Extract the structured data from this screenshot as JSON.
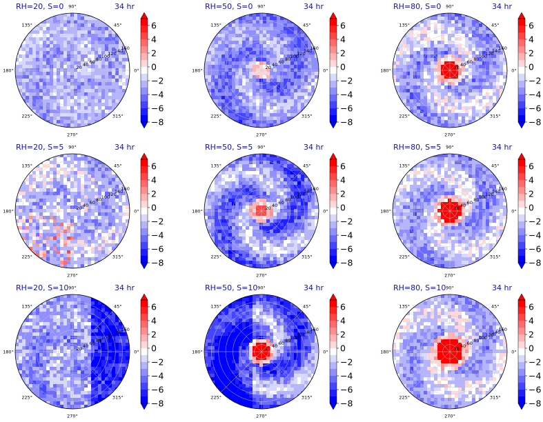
{
  "figure": {
    "rows": 3,
    "cols": 3
  },
  "colorbar": {
    "ticks": [
      6,
      4,
      2,
      0,
      -2,
      -4,
      -6,
      -8
    ],
    "tick_labels": [
      "6",
      "4",
      "2",
      "0",
      "−2",
      "−4",
      "−6",
      "−8"
    ],
    "range": [
      -8,
      7
    ],
    "colors_high_to_low": [
      "#ff0000",
      "#ff2020",
      "#ff4545",
      "#ff6a6a",
      "#ff8f8f",
      "#ffb4b4",
      "#ffd9d9",
      "#ffffff",
      "#d9d9ff",
      "#b4b4ff",
      "#8f8fff",
      "#6a6aff",
      "#4545ff",
      "#2020ff",
      "#0000ff"
    ]
  },
  "polar_axes": {
    "angle_labels": [
      "90°",
      "45°",
      "0°",
      "315°",
      "270°",
      "225°",
      "180°",
      "135°"
    ],
    "radial_labels": [
      "20",
      "40",
      "60",
      "80",
      "100",
      "120",
      "140",
      "160"
    ]
  },
  "chart_data": [
    {
      "type": "heatmap",
      "projection": "polar",
      "title": "RH=20, S=0",
      "time": "34 hr",
      "cbar_ticks": [
        -8,
        -6,
        -4,
        -2,
        0,
        2,
        4,
        6
      ],
      "colorscale": "bwr",
      "rmax": 160,
      "ring_step": 20
    },
    {
      "type": "heatmap",
      "projection": "polar",
      "title": "RH=50, S=0",
      "time": "34 hr",
      "cbar_ticks": [
        -8,
        -6,
        -4,
        -2,
        0,
        2,
        4,
        6
      ],
      "colorscale": "bwr",
      "rmax": 160,
      "ring_step": 20
    },
    {
      "type": "heatmap",
      "projection": "polar",
      "title": "RH=80, S=0",
      "time": "34 hr",
      "cbar_ticks": [
        -8,
        -6,
        -4,
        -2,
        0,
        2,
        4,
        6
      ],
      "colorscale": "bwr",
      "rmax": 160,
      "ring_step": 20
    },
    {
      "type": "heatmap",
      "projection": "polar",
      "title": "RH=20, S=5",
      "time": "34 hr",
      "cbar_ticks": [
        -8,
        -6,
        -4,
        -2,
        0,
        2,
        4,
        6
      ],
      "colorscale": "bwr",
      "rmax": 160,
      "ring_step": 20
    },
    {
      "type": "heatmap",
      "projection": "polar",
      "title": "RH=50, S=5",
      "time": "34 hr",
      "cbar_ticks": [
        -8,
        -6,
        -4,
        -2,
        0,
        2,
        4,
        6
      ],
      "colorscale": "bwr",
      "rmax": 160,
      "ring_step": 20
    },
    {
      "type": "heatmap",
      "projection": "polar",
      "title": "RH=80, S=5",
      "time": "34 hr",
      "cbar_ticks": [
        -8,
        -6,
        -4,
        -2,
        0,
        2,
        4,
        6
      ],
      "colorscale": "bwr",
      "rmax": 160,
      "ring_step": 20
    },
    {
      "type": "heatmap",
      "projection": "polar",
      "title": "RH=20, S=10",
      "time": "34 hr",
      "cbar_ticks": [
        -8,
        -6,
        -4,
        -2,
        0,
        2,
        4,
        6
      ],
      "colorscale": "bwr",
      "rmax": 160,
      "ring_step": 20
    },
    {
      "type": "heatmap",
      "projection": "polar",
      "title": "RH=50, S=10",
      "time": "34 hr",
      "cbar_ticks": [
        -8,
        -6,
        -4,
        -2,
        0,
        2,
        4,
        6
      ],
      "colorscale": "bwr",
      "rmax": 160,
      "ring_step": 20
    },
    {
      "type": "heatmap",
      "projection": "polar",
      "title": "RH=80, S=10",
      "time": "34 hr",
      "cbar_ticks": [
        -8,
        -6,
        -4,
        -2,
        0,
        2,
        4,
        6
      ],
      "colorscale": "bwr",
      "rmax": 160,
      "ring_step": 20
    }
  ]
}
